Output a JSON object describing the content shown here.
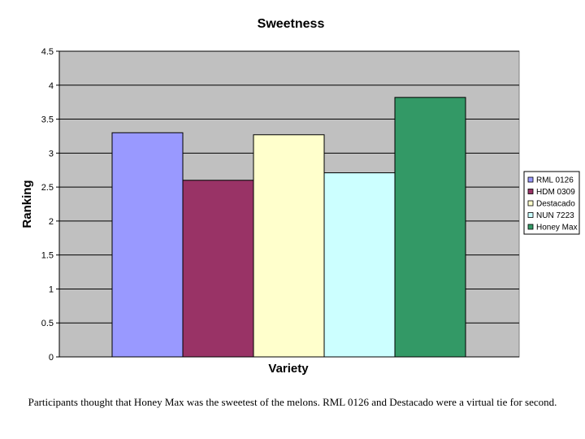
{
  "chart_data": {
    "type": "bar",
    "title": "Sweetness",
    "xlabel": "Variety",
    "ylabel": "Ranking",
    "ylim": [
      0,
      4.5
    ],
    "yticks": [
      "0",
      "0.5",
      "1",
      "1.5",
      "2",
      "2.5",
      "3",
      "3.5",
      "4",
      "4.5"
    ],
    "grid": true,
    "legend_position": "right",
    "series": [
      {
        "name": "RML 0126",
        "value": 3.3,
        "color": "#9999ff"
      },
      {
        "name": "HDM 0309",
        "value": 2.6,
        "color": "#993366"
      },
      {
        "name": "Destacado",
        "value": 3.27,
        "color": "#ffffcc"
      },
      {
        "name": "NUN 7223",
        "value": 2.71,
        "color": "#ccffff"
      },
      {
        "name": "Honey Max",
        "value": 3.82,
        "color": "#339966"
      }
    ]
  },
  "caption": "Participants thought that Honey Max was the sweetest of the melons. RML 0126 and Destacado were a virtual tie for second."
}
